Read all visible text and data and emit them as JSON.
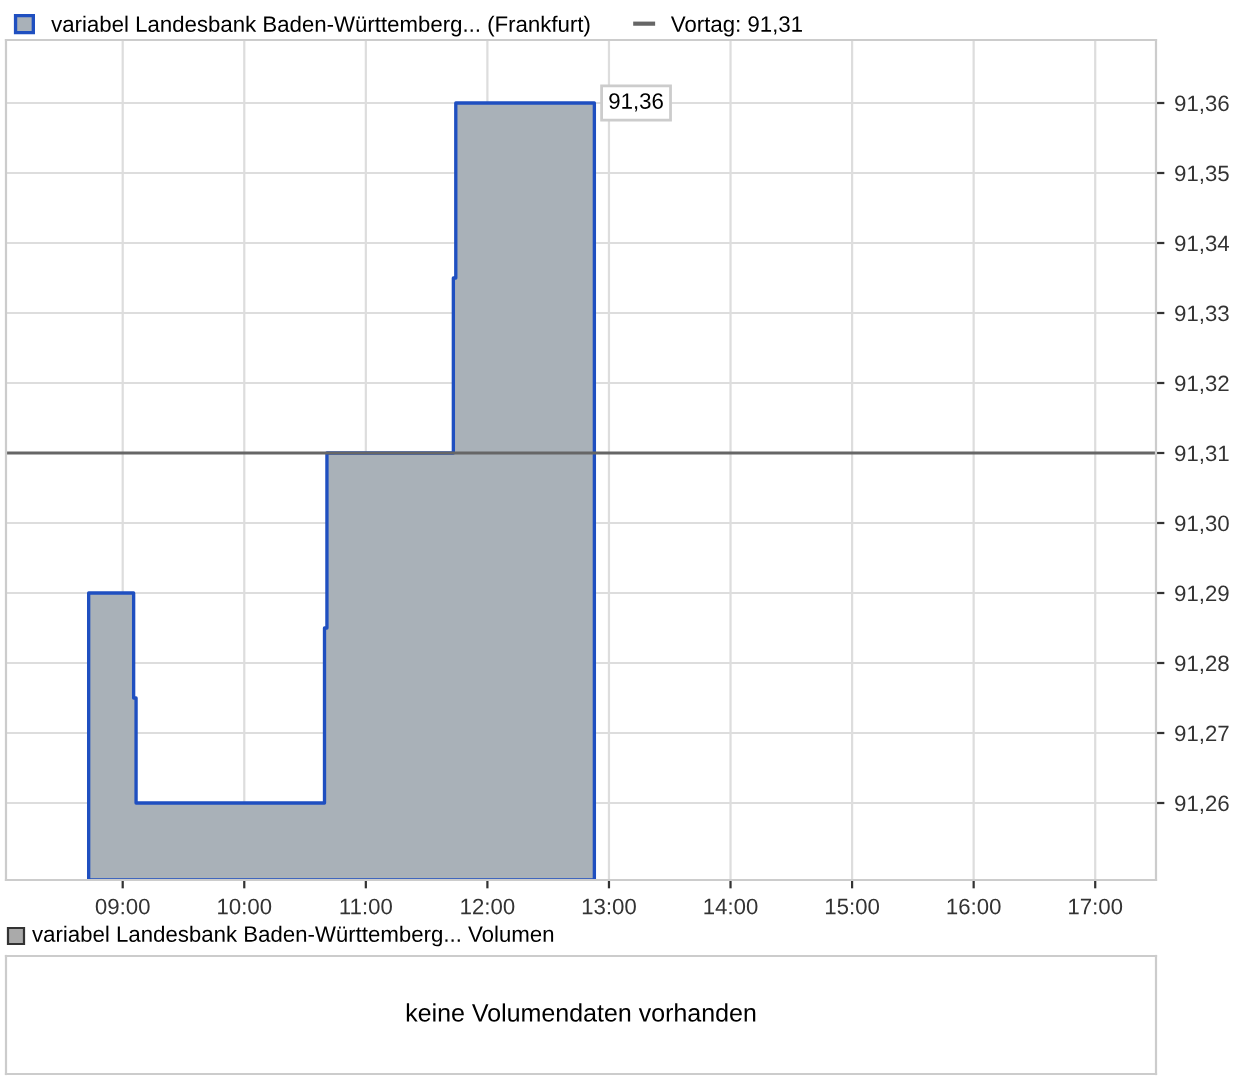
{
  "chart_data": [
    {
      "type": "area",
      "series": [
        {
          "name": "variabel Landesbank Baden-Württemberg... (Frankfurt)",
          "color": "#1f4fc0",
          "x": [
            8.72,
            9.09,
            9.11,
            10.66,
            10.68,
            11.72,
            11.74,
            12.88
          ],
          "values": [
            91.29,
            91.275,
            91.26,
            91.285,
            91.31,
            91.335,
            91.36,
            91.36
          ]
        }
      ],
      "xlim": [
        8.04,
        17.5
      ],
      "xticks": [
        {
          "value": 9,
          "label": "09:00"
        },
        {
          "value": 10,
          "label": "10:00"
        },
        {
          "value": 11,
          "label": "11:00"
        },
        {
          "value": 12,
          "label": "12:00"
        },
        {
          "value": 13,
          "label": "13:00"
        },
        {
          "value": 14,
          "label": "14:00"
        },
        {
          "value": 15,
          "label": "15:00"
        },
        {
          "value": 16,
          "label": "16:00"
        },
        {
          "value": 17,
          "label": "17:00"
        }
      ],
      "ylim": [
        91.249,
        91.369
      ],
      "yticks": [
        {
          "value": 91.26,
          "label": "91,26"
        },
        {
          "value": 91.27,
          "label": "91,27"
        },
        {
          "value": 91.28,
          "label": "91,28"
        },
        {
          "value": 91.29,
          "label": "91,29"
        },
        {
          "value": 91.3,
          "label": "91,30"
        },
        {
          "value": 91.31,
          "label": "91,31"
        },
        {
          "value": 91.32,
          "label": "91,32"
        },
        {
          "value": 91.33,
          "label": "91,33"
        },
        {
          "value": 91.34,
          "label": "91,34"
        },
        {
          "value": 91.35,
          "label": "91,35"
        },
        {
          "value": 91.36,
          "label": "91,36"
        }
      ],
      "ref_lines": [
        {
          "axis": "y",
          "value": 91.31,
          "label": "Vortag: 91,31",
          "color": "#666666"
        }
      ],
      "annotations": [
        {
          "text": "91,36",
          "x": 12.88,
          "y": 91.36
        }
      ],
      "grid": true,
      "legend": "top"
    },
    {
      "type": "other",
      "title": "variabel Landesbank Baden-Württemberg... Volumen",
      "annotations": [
        "keine Volumendaten vorhanden"
      ]
    }
  ]
}
